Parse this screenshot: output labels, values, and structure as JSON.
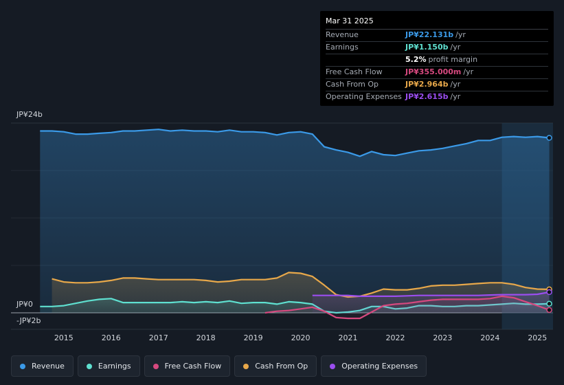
{
  "tooltip": {
    "date": "Mar 31 2025",
    "rows": [
      {
        "label": "Revenue",
        "value": "JP¥22.131b",
        "unit": "/yr",
        "color": "#3b9ae8"
      },
      {
        "label": "Earnings",
        "value": "JP¥1.150b",
        "unit": "/yr",
        "color": "#5fe0d0"
      },
      {
        "label": "",
        "value": "5.2%",
        "unit": "profit margin",
        "color": "#ffffff"
      },
      {
        "label": "Free Cash Flow",
        "value": "JP¥355.000m",
        "unit": "/yr",
        "color": "#d6497f"
      },
      {
        "label": "Cash From Op",
        "value": "JP¥2.964b",
        "unit": "/yr",
        "color": "#e8a84a"
      },
      {
        "label": "Operating Expenses",
        "value": "JP¥2.615b",
        "unit": "/yr",
        "color": "#9b4ef0"
      }
    ]
  },
  "chart_data": {
    "type": "area",
    "y_unit": "JP¥ billions",
    "ylim": [
      -2,
      24
    ],
    "y_tick_labels": [
      {
        "value": 24,
        "label": "JP¥24b"
      },
      {
        "value": 0,
        "label": "JP¥0"
      },
      {
        "value": -2,
        "label": "-JP¥2b"
      }
    ],
    "xlim": [
      2014.35,
      2025.3
    ],
    "x_tick_labels": [
      "2015",
      "2016",
      "2017",
      "2018",
      "2019",
      "2020",
      "2021",
      "2022",
      "2023",
      "2024",
      "2025"
    ],
    "highlight_start": 2024.25,
    "series": [
      {
        "name": "Revenue",
        "color": "#3b9ae8",
        "points": [
          [
            2014.5,
            23.0
          ],
          [
            2014.75,
            23.0
          ],
          [
            2015.0,
            22.9
          ],
          [
            2015.25,
            22.6
          ],
          [
            2015.5,
            22.6
          ],
          [
            2015.75,
            22.7
          ],
          [
            2016.0,
            22.8
          ],
          [
            2016.25,
            23.0
          ],
          [
            2016.5,
            23.0
          ],
          [
            2016.75,
            23.1
          ],
          [
            2017.0,
            23.2
          ],
          [
            2017.25,
            23.0
          ],
          [
            2017.5,
            23.1
          ],
          [
            2017.75,
            23.0
          ],
          [
            2018.0,
            23.0
          ],
          [
            2018.25,
            22.9
          ],
          [
            2018.5,
            23.1
          ],
          [
            2018.75,
            22.9
          ],
          [
            2019.0,
            22.9
          ],
          [
            2019.25,
            22.8
          ],
          [
            2019.5,
            22.5
          ],
          [
            2019.75,
            22.8
          ],
          [
            2020.0,
            22.9
          ],
          [
            2020.25,
            22.6
          ],
          [
            2020.5,
            21.0
          ],
          [
            2020.75,
            20.6
          ],
          [
            2021.0,
            20.3
          ],
          [
            2021.25,
            19.8
          ],
          [
            2021.5,
            20.4
          ],
          [
            2021.75,
            20.0
          ],
          [
            2022.0,
            19.9
          ],
          [
            2022.25,
            20.2
          ],
          [
            2022.5,
            20.5
          ],
          [
            2022.75,
            20.6
          ],
          [
            2023.0,
            20.8
          ],
          [
            2023.25,
            21.1
          ],
          [
            2023.5,
            21.4
          ],
          [
            2023.75,
            21.8
          ],
          [
            2024.0,
            21.8
          ],
          [
            2024.25,
            22.2
          ],
          [
            2024.5,
            22.3
          ],
          [
            2024.75,
            22.2
          ],
          [
            2025.0,
            22.3
          ],
          [
            2025.25,
            22.131
          ]
        ]
      },
      {
        "name": "Earnings",
        "color": "#5fe0d0",
        "points": [
          [
            2014.5,
            0.8
          ],
          [
            2014.75,
            0.8
          ],
          [
            2015.0,
            0.9
          ],
          [
            2015.25,
            1.2
          ],
          [
            2015.5,
            1.5
          ],
          [
            2015.75,
            1.7
          ],
          [
            2016.0,
            1.8
          ],
          [
            2016.25,
            1.3
          ],
          [
            2016.5,
            1.3
          ],
          [
            2016.75,
            1.3
          ],
          [
            2017.0,
            1.3
          ],
          [
            2017.25,
            1.3
          ],
          [
            2017.5,
            1.4
          ],
          [
            2017.75,
            1.3
          ],
          [
            2018.0,
            1.4
          ],
          [
            2018.25,
            1.3
          ],
          [
            2018.5,
            1.5
          ],
          [
            2018.75,
            1.2
          ],
          [
            2019.0,
            1.3
          ],
          [
            2019.25,
            1.3
          ],
          [
            2019.5,
            1.1
          ],
          [
            2019.75,
            1.4
          ],
          [
            2020.0,
            1.3
          ],
          [
            2020.25,
            1.1
          ],
          [
            2020.5,
            0.2
          ],
          [
            2020.75,
            0.0
          ],
          [
            2021.0,
            0.1
          ],
          [
            2021.25,
            0.3
          ],
          [
            2021.5,
            0.8
          ],
          [
            2021.75,
            0.8
          ],
          [
            2022.0,
            0.5
          ],
          [
            2022.25,
            0.6
          ],
          [
            2022.5,
            0.9
          ],
          [
            2022.75,
            0.9
          ],
          [
            2023.0,
            0.8
          ],
          [
            2023.25,
            0.8
          ],
          [
            2023.5,
            0.9
          ],
          [
            2023.75,
            0.9
          ],
          [
            2024.0,
            1.0
          ],
          [
            2024.25,
            1.1
          ],
          [
            2024.5,
            1.2
          ],
          [
            2024.75,
            1.1
          ],
          [
            2025.0,
            1.1
          ],
          [
            2025.25,
            1.15
          ]
        ]
      },
      {
        "name": "Free Cash Flow",
        "color": "#d6497f",
        "points": [
          [
            2019.25,
            0.0
          ],
          [
            2019.5,
            0.2
          ],
          [
            2019.75,
            0.3
          ],
          [
            2020.0,
            0.5
          ],
          [
            2020.25,
            0.7
          ],
          [
            2020.5,
            0.2
          ],
          [
            2020.75,
            -0.6
          ],
          [
            2021.0,
            -0.7
          ],
          [
            2021.25,
            -0.7
          ],
          [
            2021.5,
            0.1
          ],
          [
            2021.75,
            0.9
          ],
          [
            2022.0,
            1.1
          ],
          [
            2022.25,
            1.2
          ],
          [
            2022.5,
            1.4
          ],
          [
            2022.75,
            1.6
          ],
          [
            2023.0,
            1.7
          ],
          [
            2023.25,
            1.7
          ],
          [
            2023.5,
            1.7
          ],
          [
            2023.75,
            1.7
          ],
          [
            2024.0,
            1.8
          ],
          [
            2024.25,
            2.1
          ],
          [
            2024.5,
            1.9
          ],
          [
            2024.75,
            1.4
          ],
          [
            2025.0,
            0.9
          ],
          [
            2025.25,
            0.355
          ]
        ]
      },
      {
        "name": "Cash From Op",
        "color": "#e8a84a",
        "points": [
          [
            2014.75,
            4.3
          ],
          [
            2015.0,
            3.9
          ],
          [
            2015.25,
            3.8
          ],
          [
            2015.5,
            3.8
          ],
          [
            2015.75,
            3.9
          ],
          [
            2016.0,
            4.1
          ],
          [
            2016.25,
            4.4
          ],
          [
            2016.5,
            4.4
          ],
          [
            2016.75,
            4.3
          ],
          [
            2017.0,
            4.2
          ],
          [
            2017.25,
            4.2
          ],
          [
            2017.5,
            4.2
          ],
          [
            2017.75,
            4.2
          ],
          [
            2018.0,
            4.1
          ],
          [
            2018.25,
            3.9
          ],
          [
            2018.5,
            4.0
          ],
          [
            2018.75,
            4.2
          ],
          [
            2019.0,
            4.2
          ],
          [
            2019.25,
            4.2
          ],
          [
            2019.5,
            4.4
          ],
          [
            2019.75,
            5.1
          ],
          [
            2020.0,
            5.0
          ],
          [
            2020.25,
            4.6
          ],
          [
            2020.5,
            3.5
          ],
          [
            2020.75,
            2.3
          ],
          [
            2021.0,
            2.0
          ],
          [
            2021.25,
            2.1
          ],
          [
            2021.5,
            2.5
          ],
          [
            2021.75,
            3.0
          ],
          [
            2022.0,
            2.9
          ],
          [
            2022.25,
            2.9
          ],
          [
            2022.5,
            3.1
          ],
          [
            2022.75,
            3.4
          ],
          [
            2023.0,
            3.5
          ],
          [
            2023.25,
            3.5
          ],
          [
            2023.5,
            3.6
          ],
          [
            2023.75,
            3.7
          ],
          [
            2024.0,
            3.8
          ],
          [
            2024.25,
            3.8
          ],
          [
            2024.5,
            3.6
          ],
          [
            2024.75,
            3.2
          ],
          [
            2025.0,
            3.0
          ],
          [
            2025.25,
            2.964
          ]
        ]
      },
      {
        "name": "Operating Expenses",
        "color": "#9b4ef0",
        "points": [
          [
            2020.25,
            2.2
          ],
          [
            2020.5,
            2.2
          ],
          [
            2020.75,
            2.2
          ],
          [
            2021.0,
            2.2
          ],
          [
            2021.25,
            2.1
          ],
          [
            2021.5,
            2.1
          ],
          [
            2021.75,
            2.1
          ],
          [
            2022.0,
            2.1
          ],
          [
            2022.25,
            2.15
          ],
          [
            2022.5,
            2.2
          ],
          [
            2022.75,
            2.2
          ],
          [
            2023.0,
            2.2
          ],
          [
            2023.25,
            2.2
          ],
          [
            2023.5,
            2.2
          ],
          [
            2023.75,
            2.2
          ],
          [
            2024.0,
            2.25
          ],
          [
            2024.25,
            2.3
          ],
          [
            2024.5,
            2.3
          ],
          [
            2024.75,
            2.3
          ],
          [
            2025.0,
            2.35
          ],
          [
            2025.25,
            2.615
          ]
        ]
      }
    ]
  },
  "legend": [
    {
      "label": "Revenue",
      "color": "#3b9ae8"
    },
    {
      "label": "Earnings",
      "color": "#5fe0d0"
    },
    {
      "label": "Free Cash Flow",
      "color": "#d6497f"
    },
    {
      "label": "Cash From Op",
      "color": "#e8a84a"
    },
    {
      "label": "Operating Expenses",
      "color": "#9b4ef0"
    }
  ]
}
